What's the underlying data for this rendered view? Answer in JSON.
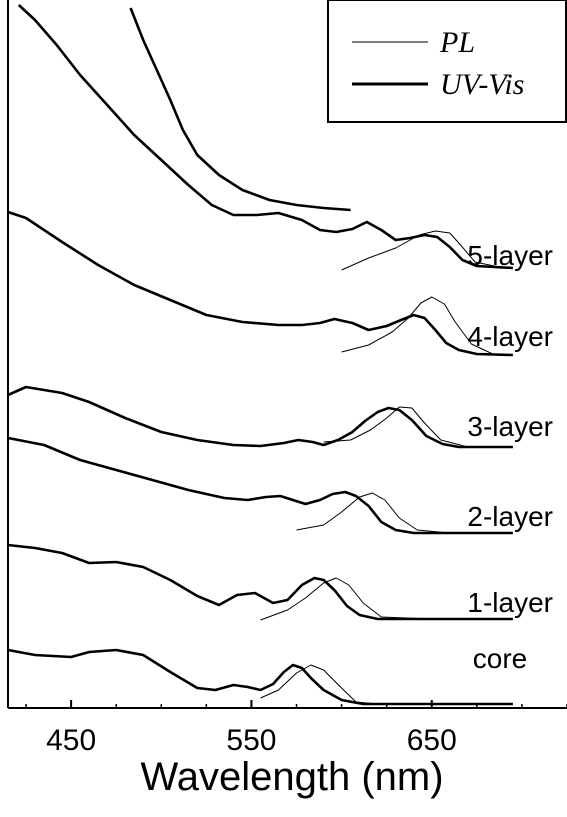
{
  "chart_data": {
    "type": "line",
    "xlabel": "Wavelength (nm)",
    "ylabel": "",
    "x_ticks": [
      450,
      550,
      650
    ],
    "xlim": [
      415,
      725
    ],
    "y_ticks": [],
    "legend": {
      "placement": "top-right",
      "entries": [
        {
          "label": "PL",
          "style": "thin"
        },
        {
          "label": "UV-Vis",
          "style": "thick"
        }
      ]
    },
    "samples": [
      {
        "label": "core",
        "uvvis": [
          [
            415,
            650
          ],
          [
            430,
            655
          ],
          [
            450,
            657
          ],
          [
            460,
            652
          ],
          [
            475,
            650
          ],
          [
            490,
            655
          ],
          [
            505,
            672
          ],
          [
            520,
            688
          ],
          [
            530,
            690
          ],
          [
            540,
            685
          ],
          [
            548,
            687
          ],
          [
            555,
            690
          ],
          [
            562,
            684
          ],
          [
            568,
            672
          ],
          [
            573,
            665
          ],
          [
            578,
            668
          ],
          [
            583,
            678
          ],
          [
            590,
            690
          ],
          [
            600,
            700
          ],
          [
            612,
            704
          ],
          [
            650,
            704
          ],
          [
            695,
            704
          ]
        ],
        "pl": [
          [
            555,
            698
          ],
          [
            565,
            690
          ],
          [
            575,
            673
          ],
          [
            583,
            665
          ],
          [
            590,
            670
          ],
          [
            600,
            688
          ],
          [
            608,
            702
          ],
          [
            620,
            704
          ],
          [
            650,
            704
          ]
        ]
      },
      {
        "label": "1-layer",
        "uvvis": [
          [
            415,
            545
          ],
          [
            430,
            548
          ],
          [
            445,
            553
          ],
          [
            460,
            563
          ],
          [
            475,
            562
          ],
          [
            490,
            567
          ],
          [
            505,
            580
          ],
          [
            520,
            596
          ],
          [
            532,
            605
          ],
          [
            542,
            595
          ],
          [
            552,
            593
          ],
          [
            562,
            603
          ],
          [
            570,
            600
          ],
          [
            578,
            585
          ],
          [
            585,
            578
          ],
          [
            590,
            580
          ],
          [
            596,
            590
          ],
          [
            603,
            606
          ],
          [
            610,
            615
          ],
          [
            620,
            619
          ],
          [
            650,
            619
          ],
          [
            695,
            619
          ]
        ],
        "pl": [
          [
            555,
            620
          ],
          [
            570,
            610
          ],
          [
            580,
            598
          ],
          [
            590,
            583
          ],
          [
            597,
            578
          ],
          [
            604,
            585
          ],
          [
            612,
            603
          ],
          [
            622,
            617
          ],
          [
            650,
            619
          ]
        ]
      },
      {
        "label": "2-layer",
        "uvvis": [
          [
            415,
            438
          ],
          [
            435,
            445
          ],
          [
            455,
            460
          ],
          [
            475,
            470
          ],
          [
            495,
            480
          ],
          [
            515,
            490
          ],
          [
            535,
            498
          ],
          [
            548,
            500
          ],
          [
            558,
            497
          ],
          [
            566,
            496
          ],
          [
            573,
            500
          ],
          [
            580,
            504
          ],
          [
            588,
            500
          ],
          [
            595,
            494
          ],
          [
            602,
            492
          ],
          [
            608,
            496
          ],
          [
            615,
            506
          ],
          [
            622,
            522
          ],
          [
            630,
            530
          ],
          [
            640,
            533
          ],
          [
            650,
            533
          ],
          [
            695,
            533
          ]
        ],
        "pl": [
          [
            575,
            530
          ],
          [
            590,
            525
          ],
          [
            600,
            512
          ],
          [
            610,
            497
          ],
          [
            617,
            493
          ],
          [
            624,
            500
          ],
          [
            632,
            518
          ],
          [
            642,
            530
          ],
          [
            660,
            533
          ]
        ]
      },
      {
        "label": "3-layer",
        "uvvis": [
          [
            415,
            395
          ],
          [
            425,
            387
          ],
          [
            435,
            390
          ],
          [
            445,
            393
          ],
          [
            460,
            402
          ],
          [
            480,
            418
          ],
          [
            500,
            432
          ],
          [
            520,
            440
          ],
          [
            540,
            445
          ],
          [
            555,
            446
          ],
          [
            568,
            443
          ],
          [
            576,
            440
          ],
          [
            584,
            442
          ],
          [
            590,
            445
          ],
          [
            598,
            440
          ],
          [
            606,
            432
          ],
          [
            613,
            421
          ],
          [
            620,
            412
          ],
          [
            626,
            408
          ],
          [
            632,
            410
          ],
          [
            639,
            420
          ],
          [
            647,
            436
          ],
          [
            656,
            444
          ],
          [
            665,
            447
          ],
          [
            695,
            447
          ]
        ],
        "pl": [
          [
            590,
            442
          ],
          [
            605,
            440
          ],
          [
            616,
            430
          ],
          [
            625,
            418
          ],
          [
            632,
            407
          ],
          [
            639,
            408
          ],
          [
            646,
            423
          ],
          [
            655,
            440
          ],
          [
            670,
            447
          ]
        ]
      },
      {
        "label": "4-layer",
        "uvvis": [
          [
            415,
            212
          ],
          [
            425,
            218
          ],
          [
            445,
            242
          ],
          [
            465,
            265
          ],
          [
            485,
            285
          ],
          [
            505,
            300
          ],
          [
            525,
            315
          ],
          [
            545,
            322
          ],
          [
            565,
            325
          ],
          [
            578,
            325
          ],
          [
            588,
            323
          ],
          [
            596,
            319
          ],
          [
            606,
            323
          ],
          [
            615,
            330
          ],
          [
            625,
            326
          ],
          [
            633,
            320
          ],
          [
            640,
            315
          ],
          [
            646,
            318
          ],
          [
            652,
            330
          ],
          [
            658,
            343
          ],
          [
            665,
            350
          ],
          [
            675,
            354
          ],
          [
            695,
            355
          ]
        ],
        "pl": [
          [
            600,
            352
          ],
          [
            615,
            345
          ],
          [
            628,
            332
          ],
          [
            637,
            318
          ],
          [
            644,
            303
          ],
          [
            650,
            297
          ],
          [
            657,
            304
          ],
          [
            663,
            322
          ],
          [
            672,
            344
          ],
          [
            685,
            355
          ]
        ]
      },
      {
        "label": "5-layer",
        "uvvis": [
          [
            421,
            5
          ],
          [
            430,
            20
          ],
          [
            442,
            45
          ],
          [
            455,
            75
          ],
          [
            470,
            105
          ],
          [
            485,
            135
          ],
          [
            500,
            160
          ],
          [
            515,
            185
          ],
          [
            528,
            205
          ],
          [
            540,
            215
          ],
          [
            553,
            215
          ],
          [
            565,
            213
          ],
          [
            578,
            220
          ],
          [
            588,
            230
          ],
          [
            597,
            232
          ],
          [
            606,
            229
          ],
          [
            614,
            222
          ],
          [
            622,
            230
          ],
          [
            630,
            240
          ],
          [
            638,
            238
          ],
          [
            646,
            235
          ],
          [
            653,
            237
          ],
          [
            660,
            247
          ],
          [
            667,
            260
          ],
          [
            675,
            266
          ],
          [
            695,
            268
          ]
        ],
        "pl": [
          [
            600,
            270
          ],
          [
            615,
            258
          ],
          [
            630,
            248
          ],
          [
            643,
            235
          ],
          [
            652,
            231
          ],
          [
            660,
            233
          ],
          [
            666,
            245
          ],
          [
            674,
            262
          ],
          [
            690,
            268
          ]
        ]
      },
      {
        "label": "",
        "uvvis": [
          [
            483,
            8
          ],
          [
            490,
            40
          ],
          [
            498,
            72
          ],
          [
            505,
            100
          ],
          [
            512,
            130
          ],
          [
            520,
            155
          ],
          [
            532,
            175
          ],
          [
            545,
            190
          ],
          [
            560,
            200
          ],
          [
            575,
            205
          ],
          [
            590,
            208
          ],
          [
            605,
            210
          ]
        ],
        "pl": []
      }
    ],
    "grid": false
  }
}
